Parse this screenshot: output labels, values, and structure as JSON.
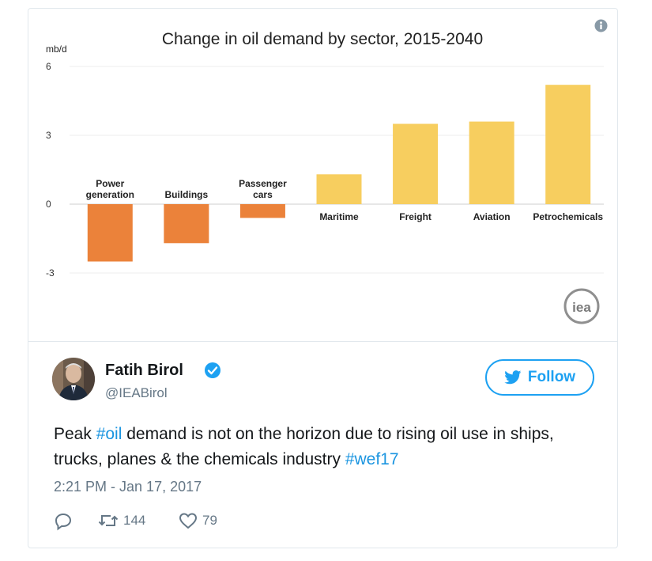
{
  "chart_data": {
    "type": "bar",
    "title": "Change in oil demand by sector, 2015-2040",
    "ylabel": "mb/d",
    "ylim": [
      -3,
      6
    ],
    "yticks": [
      "6",
      "3",
      "0",
      "-3"
    ],
    "categories": [
      "Power generation",
      "Buildings",
      "Passenger cars",
      "Maritime",
      "Freight",
      "Aviation",
      "Petrochemicals"
    ],
    "category_lines": [
      [
        "Power",
        "generation"
      ],
      [
        "Buildings"
      ],
      [
        "Passenger",
        "cars"
      ],
      [
        "Maritime"
      ],
      [
        "Freight"
      ],
      [
        "Aviation"
      ],
      [
        "Petrochemicals"
      ]
    ],
    "values": [
      -2.5,
      -1.7,
      -0.6,
      1.3,
      3.5,
      3.6,
      5.2
    ],
    "colors": {
      "negative": "#eb823a",
      "positive": "#f7ce5f"
    },
    "grid": true
  },
  "branding": {
    "logo": "iea"
  },
  "icons": {
    "info": "info-icon",
    "verified": "verified-badge-icon",
    "follow": "twitter-bird-icon",
    "reply": "reply-icon",
    "retweet": "retweet-icon",
    "like": "heart-icon"
  },
  "tweet": {
    "author": "Fatih Birol",
    "handle": "@IEABirol",
    "follow_label": "Follow",
    "text_segments": [
      {
        "text": "Peak ",
        "hashtag": false
      },
      {
        "text": "#oil",
        "hashtag": true
      },
      {
        "text": " demand is not on the horizon due to rising oil use in ships, trucks, planes & the chemicals industry ",
        "hashtag": false
      },
      {
        "text": "#wef17",
        "hashtag": true
      }
    ],
    "timestamp": "2:21 PM - Jan 17, 2017",
    "retweets": "144",
    "likes": "79"
  },
  "colors": {
    "accent": "#1da1f2",
    "hashtag": "#1b95e0",
    "muted": "#657786"
  }
}
